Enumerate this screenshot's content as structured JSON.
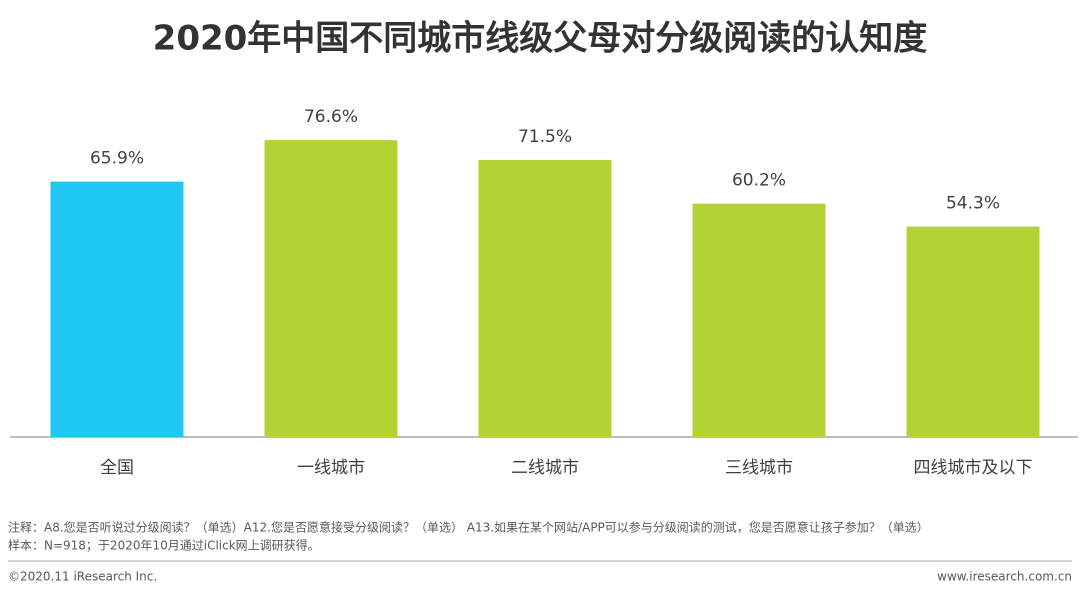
{
  "chart_data": {
    "type": "bar",
    "title": "2020年中国不同城市线级父母对分级阅读的认知度",
    "categories": [
      "全国",
      "一线城市",
      "二线城市",
      "三线城市",
      "四线城市及以下"
    ],
    "values": [
      65.9,
      76.6,
      71.5,
      60.2,
      54.3
    ],
    "value_labels": [
      "65.9%",
      "76.6%",
      "71.5%",
      "60.2%",
      "54.3%"
    ],
    "colors": [
      "#1ec8f0",
      "#b3d334",
      "#b3d334",
      "#b3d334",
      "#b3d334"
    ],
    "ylim": [
      0,
      80
    ],
    "notes": [
      "注释：A8.您是否听说过分级阅读？（单选）A12.您是否愿意接受分级阅读？（单选） A13.如果在某个网站/APP可以参与分级阅读的测试，您是否愿意让孩子参加？（单选）",
      "样本：N=918；于2020年10月通过iClick网上调研获得。"
    ],
    "copyright": "©2020.11 iResearch Inc.",
    "website": "www.iresearch.com.cn"
  }
}
